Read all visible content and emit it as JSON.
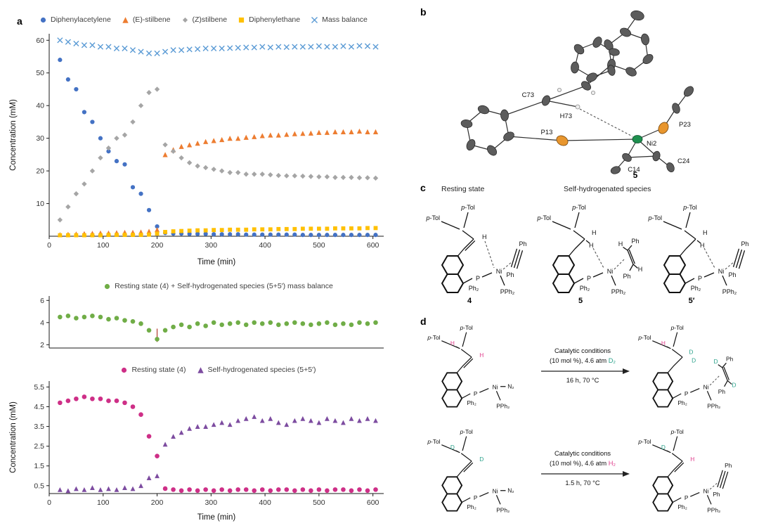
{
  "panels": {
    "a": "a",
    "b": "b",
    "c": "c",
    "d": "d"
  },
  "labels": {
    "p": "p",
    "tol": "-Tol",
    "H": "H",
    "D": "D",
    "Ni": "Ni",
    "N2": "N₂",
    "P": "P",
    "Ph": "Ph",
    "Ph2": "Ph₂",
    "PPh2": "PPh₂",
    "c4": "4",
    "c5": "5",
    "c5p": "5′"
  },
  "panel_b": {
    "atoms": {
      "C73": "C73",
      "H73": "H73",
      "P23": "P23",
      "P13": "P13",
      "Ni2": "Ni2",
      "C14": "C14",
      "C24": "C24"
    },
    "compound": "5"
  },
  "panel_c": {
    "header_left": "Resting state",
    "header_right": "Self-hydrogenated species"
  },
  "panel_d": {
    "rxn1": {
      "l1": "Catalytic conditions",
      "l2a": "(10 mol %), 4.6 atm ",
      "l2b": "D₂",
      "l3": "16 h, 70 °C"
    },
    "rxn2": {
      "l1": "Catalytic conditions",
      "l2a": "(10 mol %), 4.6 atm ",
      "l2b": "H₂",
      "l3": "1.5 h, 70 °C"
    }
  },
  "colors": {
    "blue": "#4472C4",
    "orange": "#ED7D31",
    "gray": "#A5A5A5",
    "yellow": "#FFC000",
    "light_blue": "#5B9BD5",
    "green": "#70AD47",
    "magenta": "#CE2F87",
    "purple": "#7D4CA0",
    "annotation_red": "#b03a2e",
    "h_label_pink": "#e0418e",
    "d_label_teal": "#2aa18a"
  },
  "chart_data": [
    {
      "id": "chart1",
      "type": "scatter",
      "xlabel": "Time (min)",
      "ylabel": "Concentration (mM)",
      "xlim": [
        0,
        620
      ],
      "ylim": [
        0,
        62
      ],
      "xticks": [
        0,
        100,
        200,
        300,
        400,
        500,
        600
      ],
      "yticks": [
        10,
        20,
        30,
        40,
        50,
        60
      ],
      "show_xticks": true,
      "legend_position": "top",
      "x": [
        20,
        35,
        50,
        65,
        80,
        95,
        110,
        125,
        140,
        155,
        170,
        185,
        200,
        215,
        230,
        245,
        260,
        275,
        290,
        305,
        320,
        335,
        350,
        365,
        380,
        395,
        410,
        425,
        440,
        455,
        470,
        485,
        500,
        515,
        530,
        545,
        560,
        575,
        590,
        605
      ],
      "series": [
        {
          "name": "Diphenylacetylene",
          "marker": "circle",
          "color": "#4472C4",
          "size": 3.1,
          "values": [
            54,
            48,
            45,
            38,
            35,
            30,
            26,
            23,
            22,
            15,
            13,
            8,
            3,
            1,
            0.8,
            0.8,
            0.7,
            0.7,
            0.7,
            0.6,
            0.6,
            0.6,
            0.6,
            0.5,
            0.5,
            0.5,
            0.5,
            0.5,
            0.5,
            0.5,
            0.4,
            0.4,
            0.4,
            0.4,
            0.4,
            0.4,
            0.4,
            0.4,
            0.4,
            0.4
          ]
        },
        {
          "name": "(E)-stilbene",
          "marker": "triangle",
          "color": "#ED7D31",
          "size": 3.6,
          "values": [
            0.5,
            0.6,
            0.7,
            0.8,
            0.9,
            1,
            1,
            1.1,
            1.2,
            1.2,
            1.3,
            1.5,
            2,
            25,
            26.5,
            27.5,
            28,
            28.5,
            29,
            29.3,
            29.6,
            30,
            30,
            30.3,
            30.5,
            30.8,
            31,
            31,
            31.2,
            31.4,
            31.5,
            31.6,
            31.8,
            31.8,
            32,
            32,
            32,
            32.2,
            32,
            32
          ]
        },
        {
          "name": "(Z)stilbene",
          "marker": "diamond",
          "color": "#A5A5A5",
          "size": 3.7,
          "values": [
            5,
            9,
            13,
            16,
            20,
            24,
            27,
            30,
            31,
            35,
            40,
            44,
            45,
            28,
            26,
            24,
            22.5,
            21.5,
            21,
            20.5,
            20,
            19.5,
            19.5,
            19,
            19,
            19,
            18.8,
            18.6,
            18.5,
            18.5,
            18.4,
            18.3,
            18.2,
            18.2,
            18,
            18,
            18,
            17.9,
            17.9,
            17.8
          ]
        },
        {
          "name": "Diphenylethane",
          "marker": "square",
          "color": "#FFC000",
          "size": 2.9,
          "values": [
            0.3,
            0.3,
            0.3,
            0.3,
            0.3,
            0.3,
            0.4,
            0.4,
            0.4,
            0.4,
            0.4,
            0.5,
            0.8,
            1.3,
            1.5,
            1.6,
            1.7,
            1.8,
            1.8,
            1.9,
            1.9,
            2,
            2,
            2,
            2.1,
            2.1,
            2.1,
            2.2,
            2.2,
            2.2,
            2.3,
            2.3,
            2.3,
            2.3,
            2.4,
            2.4,
            2.4,
            2.4,
            2.5,
            2.5
          ]
        },
        {
          "name": "Mass balance",
          "marker": "x",
          "color": "#5B9BD5",
          "size": 3.6,
          "values": [
            60,
            59.5,
            59,
            58.5,
            58.5,
            58,
            58,
            57.5,
            57.5,
            57,
            56.5,
            56,
            56,
            56.5,
            57,
            57,
            57.2,
            57.3,
            57.5,
            57.5,
            57.5,
            57.6,
            57.7,
            57.8,
            57.8,
            58,
            57.8,
            58,
            57.9,
            58,
            58,
            58,
            58.2,
            58,
            58,
            58.2,
            58,
            58.3,
            58.2,
            58
          ]
        }
      ]
    },
    {
      "id": "chart2",
      "type": "scatter",
      "xlabel": "",
      "ylabel": "",
      "xlim": [
        0,
        620
      ],
      "ylim": [
        1.7,
        6.4
      ],
      "yticks": [
        2,
        4,
        6
      ],
      "show_xticks": false,
      "legend_position": "top",
      "annotations": [
        {
          "type": "vline",
          "x": 200,
          "y1": 2.25,
          "y2": 3.45,
          "color": "#b03a2e"
        }
      ],
      "x": [
        20,
        35,
        50,
        65,
        80,
        95,
        110,
        125,
        140,
        155,
        170,
        185,
        200,
        215,
        230,
        245,
        260,
        275,
        290,
        305,
        320,
        335,
        350,
        365,
        380,
        395,
        410,
        425,
        440,
        455,
        470,
        485,
        500,
        515,
        530,
        545,
        560,
        575,
        590,
        605
      ],
      "series": [
        {
          "name": "Resting state (4) + Self-hydrogenated species (5+5′) mass balance",
          "marker": "circle",
          "color": "#70AD47",
          "size": 3.3,
          "values": [
            4.5,
            4.6,
            4.4,
            4.5,
            4.6,
            4.5,
            4.3,
            4.4,
            4.2,
            4.1,
            3.9,
            3.3,
            2.5,
            3.3,
            3.6,
            3.8,
            3.6,
            3.9,
            3.7,
            4,
            3.8,
            3.9,
            4,
            3.8,
            4,
            3.9,
            4,
            3.8,
            3.9,
            4,
            3.9,
            3.8,
            3.9,
            4,
            3.8,
            3.9,
            3.8,
            4,
            3.9,
            4
          ]
        }
      ]
    },
    {
      "id": "chart3",
      "type": "scatter",
      "xlabel": "Time (min)",
      "ylabel": "Concentration (mM)",
      "xlim": [
        0,
        620
      ],
      "ylim": [
        0.1,
        5.8
      ],
      "xticks": [
        0,
        100,
        200,
        300,
        400,
        500,
        600
      ],
      "yticks": [
        0.5,
        1.5,
        2.5,
        3.5,
        4.5,
        5.5
      ],
      "show_xticks": true,
      "legend_position": "top",
      "x": [
        20,
        35,
        50,
        65,
        80,
        95,
        110,
        125,
        140,
        155,
        170,
        185,
        200,
        215,
        230,
        245,
        260,
        275,
        290,
        305,
        320,
        335,
        350,
        365,
        380,
        395,
        410,
        425,
        440,
        455,
        470,
        485,
        500,
        515,
        530,
        545,
        560,
        575,
        590,
        605
      ],
      "series": [
        {
          "name": "Resting state (4)",
          "marker": "circle",
          "color": "#CE2F87",
          "size": 3.3,
          "values": [
            4.7,
            4.8,
            4.9,
            5,
            4.9,
            4.9,
            4.8,
            4.8,
            4.7,
            4.5,
            4.1,
            3,
            2,
            0.35,
            0.3,
            0.25,
            0.3,
            0.25,
            0.3,
            0.25,
            0.3,
            0.25,
            0.3,
            0.3,
            0.25,
            0.3,
            0.25,
            0.3,
            0.3,
            0.25,
            0.3,
            0.25,
            0.3,
            0.25,
            0.3,
            0.3,
            0.25,
            0.3,
            0.25,
            0.3
          ]
        },
        {
          "name": "Self-hydrogenated species (5+5′)",
          "marker": "triangle",
          "color": "#7D4CA0",
          "size": 3.4,
          "values": [
            0.3,
            0.25,
            0.35,
            0.3,
            0.4,
            0.3,
            0.35,
            0.3,
            0.4,
            0.35,
            0.5,
            0.9,
            1,
            2.6,
            3,
            3.2,
            3.4,
            3.5,
            3.5,
            3.6,
            3.7,
            3.6,
            3.8,
            3.9,
            4,
            3.8,
            3.9,
            3.7,
            3.6,
            3.8,
            3.9,
            3.8,
            3.7,
            3.9,
            3.8,
            3.7,
            3.9,
            3.8,
            3.9,
            3.8
          ]
        }
      ]
    }
  ]
}
